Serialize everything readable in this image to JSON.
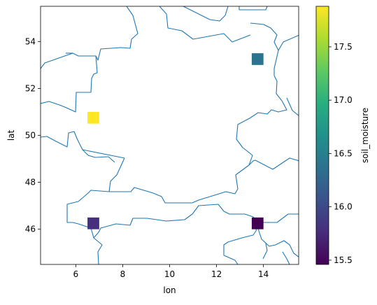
{
  "chart_data": {
    "type": "heatmap",
    "title": "",
    "xlabel": "lon",
    "ylabel": "lat",
    "xlim": [
      4.5,
      15.5
    ],
    "ylim": [
      44.5,
      55.5
    ],
    "xticks": [
      6,
      8,
      10,
      12,
      14
    ],
    "yticks": [
      46,
      48,
      50,
      52,
      54
    ],
    "cell_size": [
      0.5,
      0.5
    ],
    "points": [
      {
        "lon": 6.75,
        "lat": 50.75,
        "value": 17.88
      },
      {
        "lon": 13.75,
        "lat": 53.25,
        "value": 16.38
      },
      {
        "lon": 6.75,
        "lat": 46.25,
        "value": 15.78
      },
      {
        "lon": 13.75,
        "lat": 46.25,
        "value": 15.46
      }
    ],
    "colorbar": {
      "label": "soil_moisture",
      "cmap": "viridis",
      "range": [
        15.46,
        17.88
      ],
      "ticks": [
        15.5,
        16.0,
        16.5,
        17.0,
        17.5
      ]
    },
    "borders": "country boundaries drawn as thin steel-blue lines",
    "border_color": "#1f77b4"
  }
}
